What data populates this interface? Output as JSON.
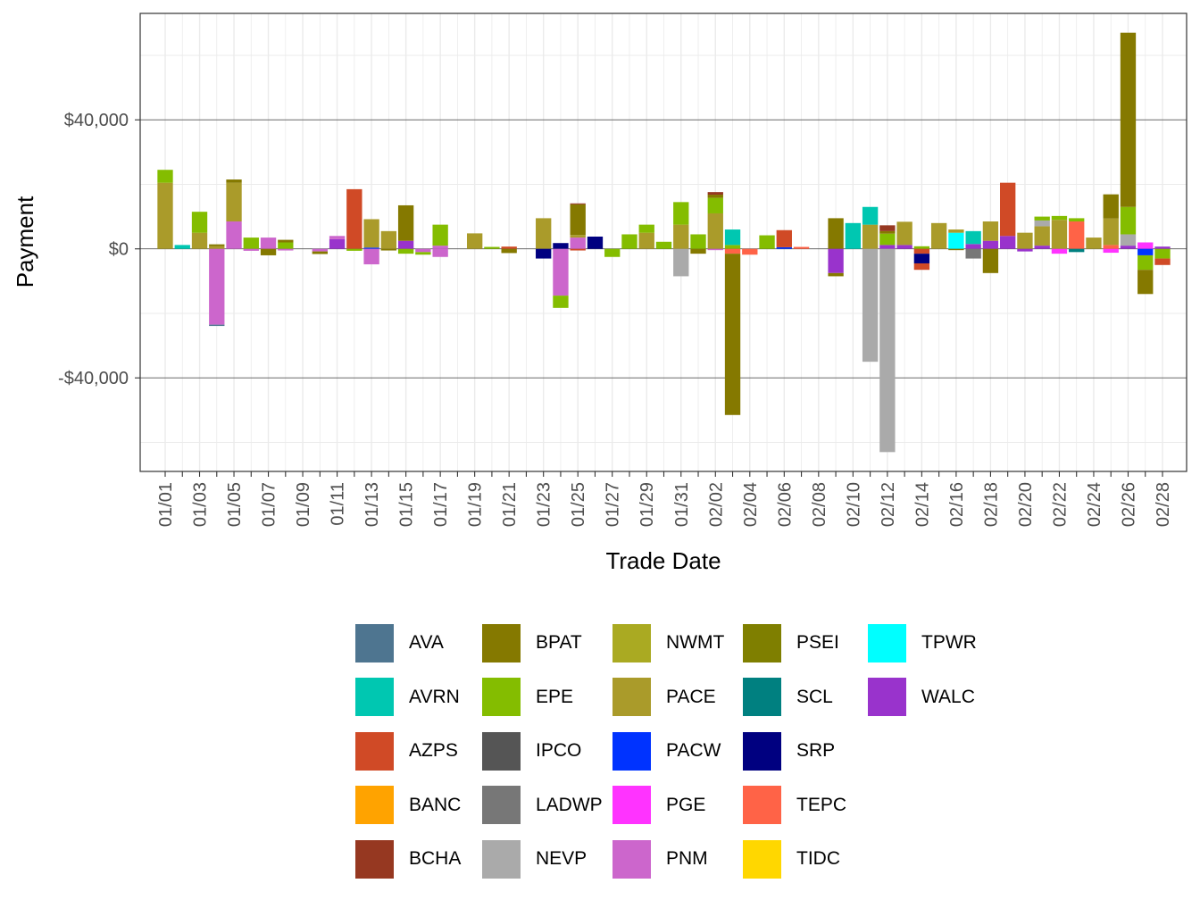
{
  "chart_data": {
    "type": "bar",
    "stacked": true,
    "xlabel": "Trade Date",
    "ylabel": "Payment",
    "ylim": [
      -69000,
      73000
    ],
    "y_ticks": [
      {
        "value": 40000,
        "label": "$40,000"
      },
      {
        "value": 0,
        "label": "$0"
      },
      {
        "value": -40000,
        "label": "-$40,000"
      }
    ],
    "x_tick_labels": [
      "01/01",
      "01/03",
      "01/05",
      "01/07",
      "01/09",
      "01/11",
      "01/13",
      "01/15",
      "01/17",
      "01/19",
      "01/21",
      "01/23",
      "01/25",
      "01/27",
      "01/29",
      "01/31",
      "02/02",
      "02/04",
      "02/06",
      "02/08",
      "02/10",
      "02/12",
      "02/14",
      "02/16",
      "02/18",
      "02/20",
      "02/22",
      "02/24",
      "02/26",
      "02/28"
    ],
    "categories": [
      "01/01",
      "01/02",
      "01/03",
      "01/04",
      "01/05",
      "01/06",
      "01/07",
      "01/08",
      "01/09",
      "01/10",
      "01/11",
      "01/12",
      "01/13",
      "01/14",
      "01/15",
      "01/16",
      "01/17",
      "01/18",
      "01/19",
      "01/20",
      "01/21",
      "01/22",
      "01/23",
      "01/24",
      "01/25",
      "01/26",
      "01/27",
      "01/28",
      "01/29",
      "01/30",
      "01/31",
      "02/01",
      "02/02",
      "02/03",
      "02/04",
      "02/05",
      "02/06",
      "02/07",
      "02/08",
      "02/09",
      "02/10",
      "02/11",
      "02/12",
      "02/13",
      "02/14",
      "02/15",
      "02/16",
      "02/17",
      "02/18",
      "02/19",
      "02/20",
      "02/21",
      "02/22",
      "02/23",
      "02/24",
      "02/25",
      "02/26",
      "02/27",
      "02/28"
    ],
    "legend": [
      {
        "name": "AVA",
        "color": "#4E7590"
      },
      {
        "name": "AVRN",
        "color": "#00C7B1"
      },
      {
        "name": "AZPS",
        "color": "#D04A26"
      },
      {
        "name": "BANC",
        "color": "#FFA300"
      },
      {
        "name": "BCHA",
        "color": "#963821"
      },
      {
        "name": "BPAT",
        "color": "#857900"
      },
      {
        "name": "EPE",
        "color": "#84BD00"
      },
      {
        "name": "IPCO",
        "color": "#555555"
      },
      {
        "name": "LADWP",
        "color": "#777777"
      },
      {
        "name": "NEVP",
        "color": "#AAAAAA"
      },
      {
        "name": "NWMT",
        "color": "#AAAA22"
      },
      {
        "name": "PACE",
        "color": "#AA9B2A"
      },
      {
        "name": "PACW",
        "color": "#0033FF"
      },
      {
        "name": "PGE",
        "color": "#FF33FF"
      },
      {
        "name": "PNM",
        "color": "#CC66CC"
      },
      {
        "name": "PSEI",
        "color": "#7F7F00"
      },
      {
        "name": "SCL",
        "color": "#008080"
      },
      {
        "name": "SRP",
        "color": "#000080"
      },
      {
        "name": "TEPC",
        "color": "#FF6347"
      },
      {
        "name": "TIDC",
        "color": "#FFD700"
      },
      {
        "name": "TPWR",
        "color": "#00FFFF"
      },
      {
        "name": "WALC",
        "color": "#9933CC"
      }
    ],
    "daily_segments": [
      {
        "date": "01/01",
        "segments": [
          {
            "area": "PACE",
            "value": 20500
          },
          {
            "area": "EPE",
            "value": 4000
          }
        ]
      },
      {
        "date": "01/02",
        "segments": [
          {
            "area": "AVRN",
            "value": 1200
          }
        ]
      },
      {
        "date": "01/03",
        "segments": [
          {
            "area": "PACE",
            "value": 5000
          },
          {
            "area": "EPE",
            "value": 6500
          }
        ]
      },
      {
        "date": "01/04",
        "segments": [
          {
            "area": "PACE",
            "value": 800
          },
          {
            "area": "BPAT",
            "value": 600
          },
          {
            "area": "PNM",
            "value": -23500
          },
          {
            "area": "AVA",
            "value": -400
          }
        ]
      },
      {
        "date": "01/05",
        "segments": [
          {
            "area": "PNM",
            "value": 8500
          },
          {
            "area": "PACE",
            "value": 12000
          },
          {
            "area": "BPAT",
            "value": 1000
          }
        ]
      },
      {
        "date": "01/06",
        "segments": [
          {
            "area": "EPE",
            "value": 3500
          },
          {
            "area": "PNM",
            "value": -600
          }
        ]
      },
      {
        "date": "01/07",
        "segments": [
          {
            "area": "PNM",
            "value": 3500
          },
          {
            "area": "BPAT",
            "value": -2000
          }
        ]
      },
      {
        "date": "01/08",
        "segments": [
          {
            "area": "EPE",
            "value": 2000
          },
          {
            "area": "BPAT",
            "value": 800
          },
          {
            "area": "PNM",
            "value": -500
          }
        ]
      },
      {
        "date": "01/10",
        "segments": [
          {
            "area": "PNM",
            "value": -800
          },
          {
            "area": "BPAT",
            "value": -800
          }
        ]
      },
      {
        "date": "01/11",
        "segments": [
          {
            "area": "WALC",
            "value": 3000
          },
          {
            "area": "PNM",
            "value": 1000
          }
        ]
      },
      {
        "date": "01/12",
        "segments": [
          {
            "area": "AZPS",
            "value": 18500
          },
          {
            "area": "EPE",
            "value": -600
          }
        ]
      },
      {
        "date": "01/13",
        "segments": [
          {
            "area": "PACW",
            "value": 400
          },
          {
            "area": "PACE",
            "value": 8800
          },
          {
            "area": "PNM",
            "value": -4800
          }
        ]
      },
      {
        "date": "01/14",
        "segments": [
          {
            "area": "PACE",
            "value": 5500
          },
          {
            "area": "BPAT",
            "value": -500
          }
        ]
      },
      {
        "date": "01/15",
        "segments": [
          {
            "area": "WALC",
            "value": 2500
          },
          {
            "area": "BPAT",
            "value": 11000
          },
          {
            "area": "EPE",
            "value": -1500
          }
        ]
      },
      {
        "date": "01/16",
        "segments": [
          {
            "area": "PNM",
            "value": -1000
          },
          {
            "area": "EPE",
            "value": -800
          }
        ]
      },
      {
        "date": "01/17",
        "segments": [
          {
            "area": "PNM",
            "value": 1000
          },
          {
            "area": "EPE",
            "value": 6500
          },
          {
            "area": "PNM",
            "value": -2500
          }
        ]
      },
      {
        "date": "01/19",
        "segments": [
          {
            "area": "PACE",
            "value": 4800
          }
        ]
      },
      {
        "date": "01/20",
        "segments": [
          {
            "area": "EPE",
            "value": 600
          }
        ]
      },
      {
        "date": "01/21",
        "segments": [
          {
            "area": "AZPS",
            "value": 700
          },
          {
            "area": "BPAT",
            "value": -1300
          }
        ]
      },
      {
        "date": "01/23",
        "segments": [
          {
            "area": "PACE",
            "value": 9500
          },
          {
            "area": "SRP",
            "value": -3000
          }
        ]
      },
      {
        "date": "01/24",
        "segments": [
          {
            "area": "SRP",
            "value": 1800
          },
          {
            "area": "PNM",
            "value": -14500
          },
          {
            "area": "EPE",
            "value": -3800
          }
        ]
      },
      {
        "date": "01/25",
        "segments": [
          {
            "area": "PNM",
            "value": 3500
          },
          {
            "area": "PACE",
            "value": 800
          },
          {
            "area": "BPAT",
            "value": 9500
          },
          {
            "area": "BCHA",
            "value": 300
          },
          {
            "area": "AZPS",
            "value": -500
          }
        ]
      },
      {
        "date": "01/26",
        "segments": [
          {
            "area": "SRP",
            "value": 3800
          }
        ]
      },
      {
        "date": "01/27",
        "segments": [
          {
            "area": "EPE",
            "value": -2500
          }
        ]
      },
      {
        "date": "01/28",
        "segments": [
          {
            "area": "EPE",
            "value": 4500
          }
        ]
      },
      {
        "date": "01/29",
        "segments": [
          {
            "area": "PACE",
            "value": 5000
          },
          {
            "area": "EPE",
            "value": 2500
          }
        ]
      },
      {
        "date": "01/30",
        "segments": [
          {
            "area": "EPE",
            "value": 2200
          }
        ]
      },
      {
        "date": "01/31",
        "segments": [
          {
            "area": "PACE",
            "value": 7500
          },
          {
            "area": "EPE",
            "value": 7000
          },
          {
            "area": "NEVP",
            "value": -8500
          }
        ]
      },
      {
        "date": "02/01",
        "segments": [
          {
            "area": "EPE",
            "value": 4500
          },
          {
            "area": "BPAT",
            "value": -1500
          }
        ]
      },
      {
        "date": "02/02",
        "segments": [
          {
            "area": "PACE",
            "value": 11000
          },
          {
            "area": "EPE",
            "value": 4800
          },
          {
            "area": "BPAT",
            "value": 1000
          },
          {
            "area": "BCHA",
            "value": 800
          },
          {
            "area": "PNM",
            "value": -400
          }
        ]
      },
      {
        "date": "02/03",
        "segments": [
          {
            "area": "EPE",
            "value": 1200
          },
          {
            "area": "AVRN",
            "value": 4800
          },
          {
            "area": "TEPC",
            "value": -1500
          },
          {
            "area": "BPAT",
            "value": -50000
          }
        ]
      },
      {
        "date": "02/04",
        "segments": [
          {
            "area": "TEPC",
            "value": -1800
          }
        ]
      },
      {
        "date": "02/05",
        "segments": [
          {
            "area": "EPE",
            "value": 4200
          }
        ]
      },
      {
        "date": "02/06",
        "segments": [
          {
            "area": "PACW",
            "value": 500
          },
          {
            "area": "AZPS",
            "value": 5300
          }
        ]
      },
      {
        "date": "02/07",
        "segments": [
          {
            "area": "TEPC",
            "value": 600
          }
        ]
      },
      {
        "date": "02/09",
        "segments": [
          {
            "area": "BPAT",
            "value": 9500
          },
          {
            "area": "WALC",
            "value": -7500
          },
          {
            "area": "BPAT",
            "value": -1000
          }
        ]
      },
      {
        "date": "02/10",
        "segments": [
          {
            "area": "AVRN",
            "value": 8000
          }
        ]
      },
      {
        "date": "02/11",
        "segments": [
          {
            "area": "PACE",
            "value": 7500
          },
          {
            "area": "AVRN",
            "value": 5500
          },
          {
            "area": "NEVP",
            "value": -35000
          }
        ]
      },
      {
        "date": "02/12",
        "segments": [
          {
            "area": "WALC",
            "value": 1200
          },
          {
            "area": "EPE",
            "value": 3500
          },
          {
            "area": "BPAT",
            "value": 800
          },
          {
            "area": "BCHA",
            "value": 1800
          },
          {
            "area": "NEVP",
            "value": -63000
          }
        ]
      },
      {
        "date": "02/13",
        "segments": [
          {
            "area": "WALC",
            "value": 1200
          },
          {
            "area": "PACE",
            "value": 7200
          }
        ]
      },
      {
        "date": "02/14",
        "segments": [
          {
            "area": "EPE",
            "value": 800
          },
          {
            "area": "AZPS",
            "value": -1500
          },
          {
            "area": "SRP",
            "value": -3000
          },
          {
            "area": "AZPS",
            "value": -2000
          }
        ]
      },
      {
        "date": "02/15",
        "segments": [
          {
            "area": "PACE",
            "value": 8000
          }
        ]
      },
      {
        "date": "02/16",
        "segments": [
          {
            "area": "TPWR",
            "value": 5000
          },
          {
            "area": "PACE",
            "value": 1000
          },
          {
            "area": "BPAT",
            "value": -400
          }
        ]
      },
      {
        "date": "02/17",
        "segments": [
          {
            "area": "WALC",
            "value": 1500
          },
          {
            "area": "AVRN",
            "value": 4000
          },
          {
            "area": "LADWP",
            "value": -3000
          }
        ]
      },
      {
        "date": "02/18",
        "segments": [
          {
            "area": "WALC",
            "value": 2500
          },
          {
            "area": "PACE",
            "value": 6000
          },
          {
            "area": "BPAT",
            "value": -7500
          }
        ]
      },
      {
        "date": "02/19",
        "segments": [
          {
            "area": "WALC",
            "value": 4000
          },
          {
            "area": "AZPS",
            "value": 16500
          }
        ]
      },
      {
        "date": "02/20",
        "segments": [
          {
            "area": "PACE",
            "value": 5000
          },
          {
            "area": "WALC",
            "value": -800
          }
        ]
      },
      {
        "date": "02/21",
        "segments": [
          {
            "area": "WALC",
            "value": 1000
          },
          {
            "area": "PACE",
            "value": 6000
          },
          {
            "area": "NEVP",
            "value": 1800
          },
          {
            "area": "EPE",
            "value": 1200
          }
        ]
      },
      {
        "date": "02/22",
        "segments": [
          {
            "area": "PACE",
            "value": 9000
          },
          {
            "area": "EPE",
            "value": 1200
          },
          {
            "area": "PGE",
            "value": -1500
          }
        ]
      },
      {
        "date": "02/23",
        "segments": [
          {
            "area": "TEPC",
            "value": 8500
          },
          {
            "area": "EPE",
            "value": 1000
          },
          {
            "area": "SCL",
            "value": -1000
          }
        ]
      },
      {
        "date": "02/24",
        "segments": [
          {
            "area": "PACE",
            "value": 3500
          }
        ]
      },
      {
        "date": "02/25",
        "segments": [
          {
            "area": "TEPC",
            "value": 1200
          },
          {
            "area": "PACE",
            "value": 8200
          },
          {
            "area": "BPAT",
            "value": 7500
          },
          {
            "area": "PGE",
            "value": -1200
          }
        ]
      },
      {
        "date": "02/26",
        "segments": [
          {
            "area": "WALC",
            "value": 1000
          },
          {
            "area": "NEVP",
            "value": 3500
          },
          {
            "area": "EPE",
            "value": 8500
          },
          {
            "area": "BPAT",
            "value": 54000
          }
        ]
      },
      {
        "date": "02/27",
        "segments": [
          {
            "area": "PGE",
            "value": 2000
          },
          {
            "area": "PACW",
            "value": -2000
          },
          {
            "area": "EPE",
            "value": -4500
          },
          {
            "area": "BPAT",
            "value": -7500
          }
        ]
      },
      {
        "date": "02/28",
        "segments": [
          {
            "area": "WALC",
            "value": 700
          },
          {
            "area": "EPE",
            "value": -3000
          },
          {
            "area": "AZPS",
            "value": -2000
          }
        ]
      }
    ]
  }
}
